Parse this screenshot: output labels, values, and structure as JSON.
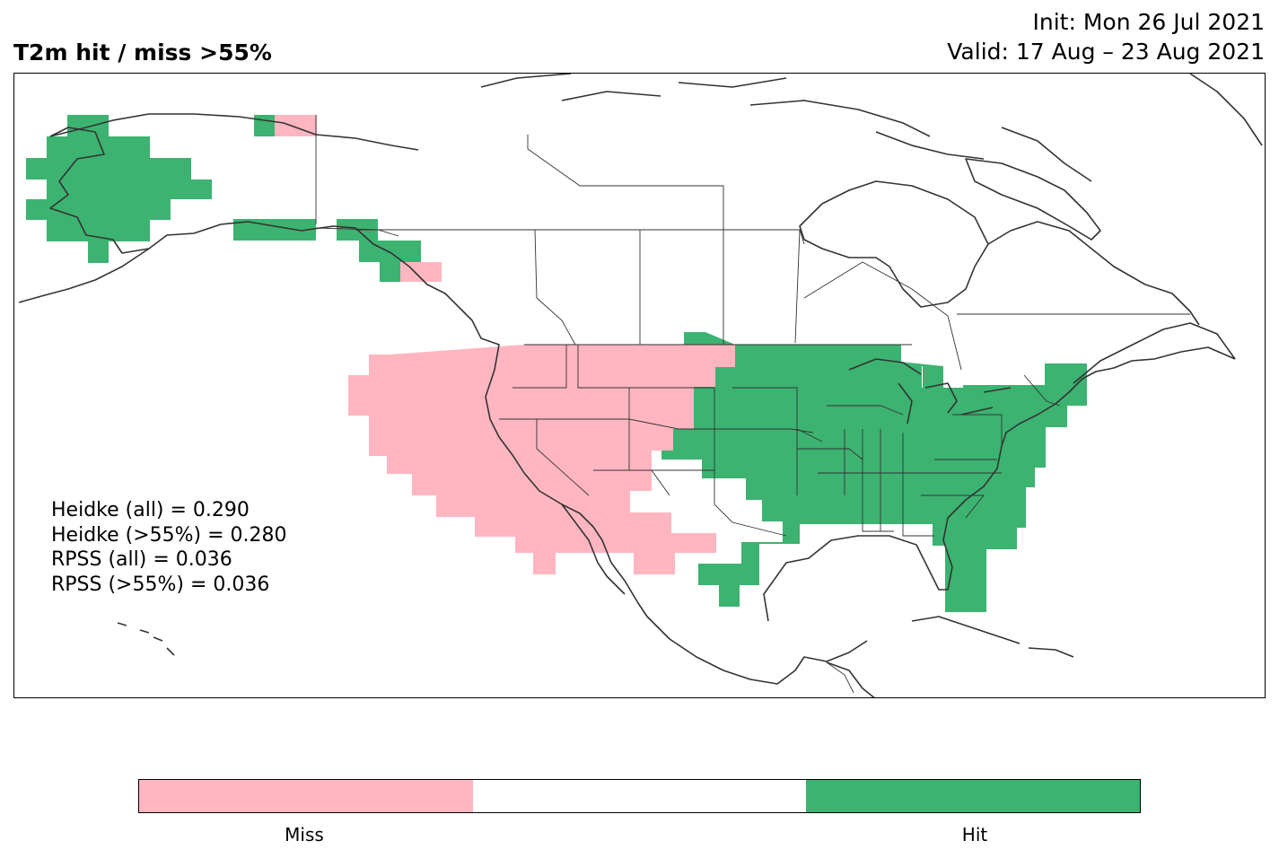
{
  "header": {
    "title": "T2m hit / miss  >55%",
    "init": "Init: Mon 26 Jul 2021",
    "valid": "Valid: 17 Aug – 23 Aug 2021"
  },
  "stats": [
    "Heidke (all) = 0.290",
    "Heidke (>55%) = 0.280",
    "RPSS (all) = 0.036",
    "RPSS (>55%) = 0.036"
  ],
  "colors": {
    "hit": "#3cb371",
    "miss": "#ffb6c1",
    "neutral": "#ffffff",
    "coast": "#333333"
  },
  "colorbar": {
    "miss_label": "Miss",
    "hit_label": "Hit"
  }
}
